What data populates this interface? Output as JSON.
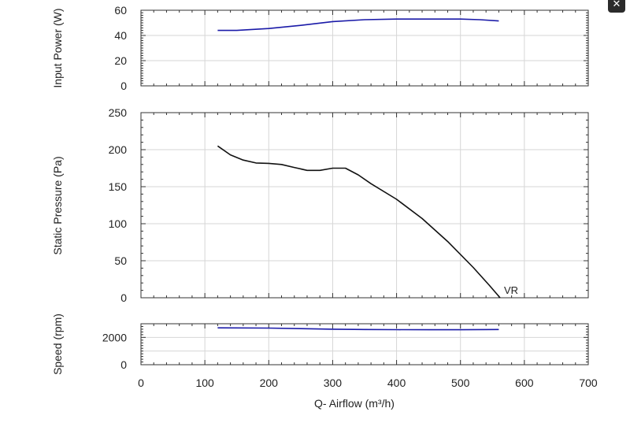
{
  "close_button": {
    "icon": "close-icon",
    "glyph": "✕"
  },
  "colors": {
    "power": "#1a1aa8",
    "pressure": "#111111",
    "speed": "#1a1aa8",
    "grid": "#d6d6d6",
    "axis": "#333333"
  },
  "chart_data": [
    {
      "id": "power",
      "type": "line",
      "ylabel": "Input Power (W)",
      "ylim": [
        0,
        60
      ],
      "yticks": [
        0,
        20,
        40,
        60
      ],
      "xlim": [
        0,
        700
      ],
      "grid": true,
      "series": [
        {
          "color": "#1a1aa8",
          "x": [
            120,
            150,
            200,
            250,
            300,
            350,
            400,
            450,
            500,
            530,
            560
          ],
          "y": [
            44,
            44,
            45.5,
            48,
            51,
            52.5,
            53,
            53,
            53,
            52.5,
            51.5
          ]
        }
      ]
    },
    {
      "id": "pressure",
      "type": "line",
      "ylabel": "Static Pressure (Pa)",
      "ylim": [
        0,
        250
      ],
      "yticks": [
        0,
        50,
        100,
        150,
        200,
        250
      ],
      "xlim": [
        0,
        700
      ],
      "grid": true,
      "curve_label": "VR",
      "series": [
        {
          "color": "#111111",
          "x": [
            120,
            140,
            160,
            180,
            200,
            220,
            240,
            260,
            280,
            300,
            320,
            340,
            360,
            400,
            440,
            480,
            520,
            545,
            562
          ],
          "y": [
            205,
            193,
            186,
            182,
            181.5,
            180,
            176,
            172,
            172,
            175,
            175,
            166,
            154,
            133,
            107,
            76,
            41,
            17,
            0
          ]
        }
      ]
    },
    {
      "id": "speed",
      "type": "line",
      "ylabel": "Speed (rpm)",
      "ylim": [
        0,
        3000
      ],
      "yticks": [
        0,
        2000
      ],
      "xlim": [
        0,
        700
      ],
      "xticks": [
        0,
        100,
        200,
        300,
        400,
        500,
        600,
        700
      ],
      "xlabel": "Q- Airflow (m³/h)",
      "grid": true,
      "series": [
        {
          "color": "#1a1aa8",
          "x": [
            120,
            200,
            250,
            300,
            350,
            400,
            450,
            500,
            560
          ],
          "y": [
            2700,
            2680,
            2640,
            2600,
            2580,
            2570,
            2560,
            2560,
            2580
          ]
        }
      ]
    }
  ]
}
